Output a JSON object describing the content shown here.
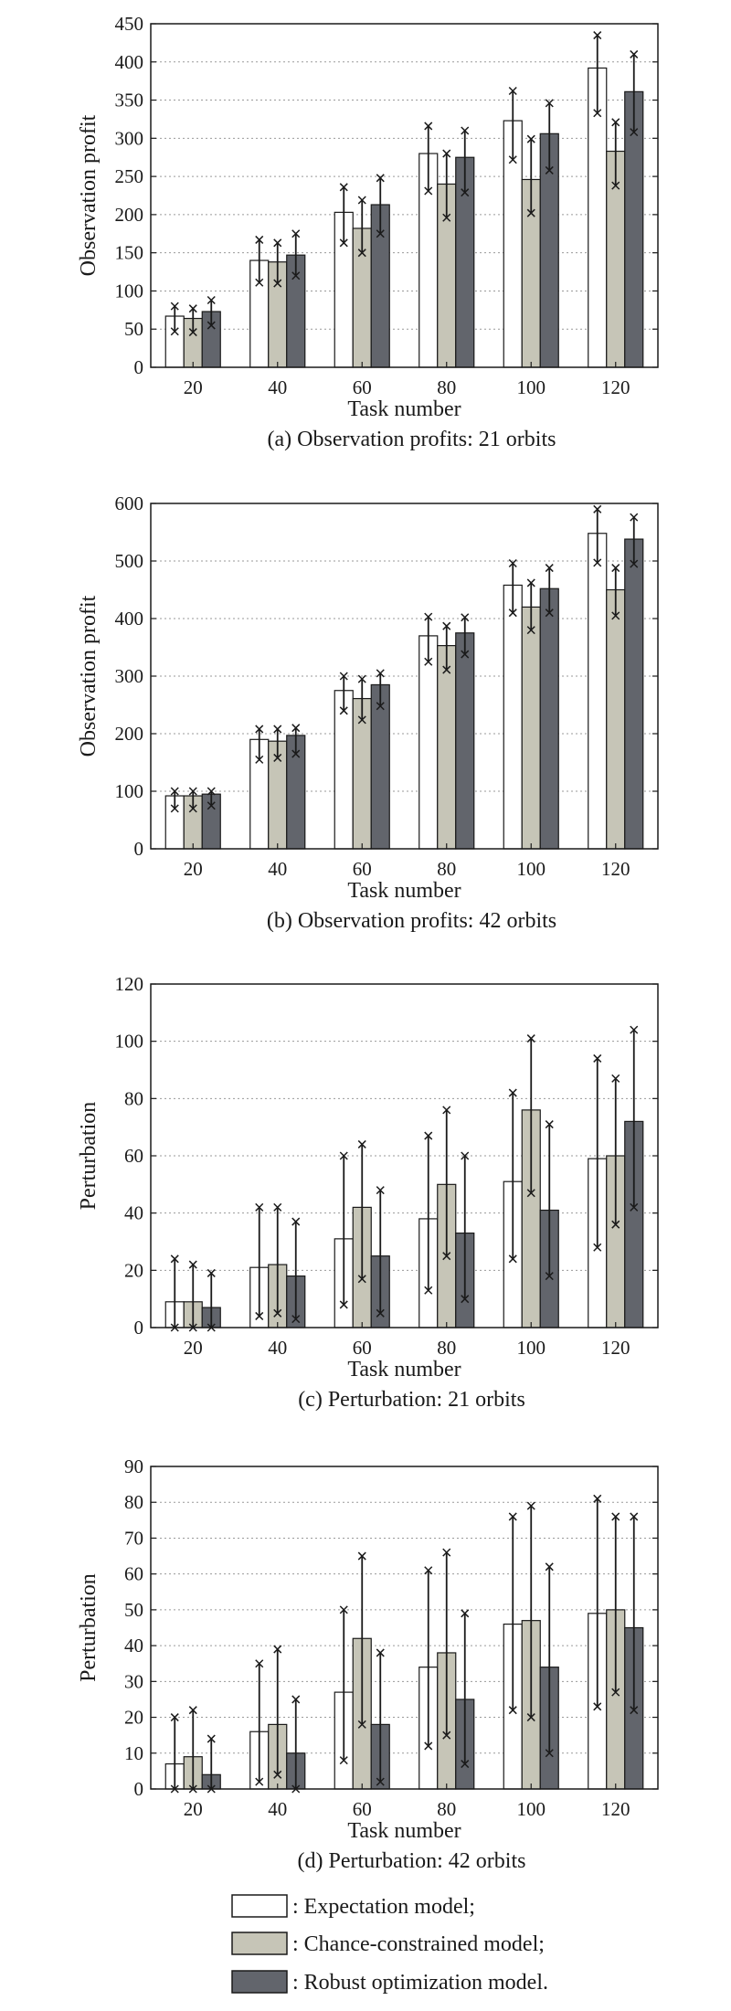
{
  "colors": {
    "expectation": "#ffffff",
    "chance": "#c6c5b7",
    "robust": "#62656c",
    "stroke": "#1a1a1a",
    "grid": "#9a9a9a"
  },
  "legend": [
    {
      "key": "expectation",
      "label": ": Expectation model;"
    },
    {
      "key": "chance",
      "label": ": Chance-constrained model;"
    },
    {
      "key": "robust",
      "label": ": Robust optimization model."
    }
  ],
  "chart_data": [
    {
      "type": "bar",
      "caption": "(a) Observation profits: 21 orbits",
      "xlabel": "Task number",
      "ylabel": "Observation profit",
      "ylim": [
        0,
        450
      ],
      "yticks": [
        0,
        50,
        100,
        150,
        200,
        250,
        300,
        350,
        400,
        450
      ],
      "categories": [
        "20",
        "40",
        "60",
        "80",
        "100",
        "120"
      ],
      "series": [
        {
          "name": "Expectation model",
          "key": "expectation",
          "values": [
            67,
            140,
            203,
            280,
            323,
            392
          ],
          "err_low": [
            47,
            111,
            163,
            231,
            272,
            333
          ],
          "err_high": [
            80,
            167,
            236,
            316,
            362,
            435
          ]
        },
        {
          "name": "Chance-constrained model",
          "key": "chance",
          "values": [
            64,
            138,
            182,
            240,
            246,
            283
          ],
          "err_low": [
            46,
            110,
            150,
            196,
            202,
            238
          ],
          "err_high": [
            77,
            163,
            219,
            280,
            299,
            321
          ]
        },
        {
          "name": "Robust optimization model",
          "key": "robust",
          "values": [
            73,
            147,
            213,
            275,
            306,
            361
          ],
          "err_low": [
            55,
            120,
            175,
            229,
            258,
            308
          ],
          "err_high": [
            88,
            175,
            248,
            310,
            346,
            410
          ]
        }
      ]
    },
    {
      "type": "bar",
      "caption": "(b) Observation profits: 42 orbits",
      "xlabel": "Task number",
      "ylabel": "Observation profit",
      "ylim": [
        0,
        600
      ],
      "yticks": [
        0,
        100,
        200,
        300,
        400,
        500,
        600
      ],
      "categories": [
        "20",
        "40",
        "60",
        "80",
        "100",
        "120"
      ],
      "series": [
        {
          "name": "Expectation model",
          "key": "expectation",
          "values": [
            92,
            190,
            275,
            370,
            458,
            548
          ],
          "err_low": [
            70,
            155,
            240,
            325,
            410,
            497
          ],
          "err_high": [
            100,
            208,
            300,
            403,
            496,
            590
          ]
        },
        {
          "name": "Chance-constrained model",
          "key": "chance",
          "values": [
            92,
            187,
            261,
            353,
            420,
            450
          ],
          "err_low": [
            70,
            158,
            224,
            311,
            380,
            405
          ],
          "err_high": [
            100,
            208,
            295,
            387,
            462,
            488
          ]
        },
        {
          "name": "Robust optimization model",
          "key": "robust",
          "values": [
            95,
            197,
            285,
            375,
            452,
            538
          ],
          "err_low": [
            75,
            165,
            248,
            338,
            410,
            495
          ],
          "err_high": [
            100,
            210,
            305,
            402,
            488,
            576
          ]
        }
      ]
    },
    {
      "type": "bar",
      "caption": "(c) Perturbation: 21 orbits",
      "xlabel": "Task number",
      "ylabel": "Perturbation",
      "ylim": [
        0,
        120
      ],
      "yticks": [
        0,
        20,
        40,
        60,
        80,
        100,
        120
      ],
      "categories": [
        "20",
        "40",
        "60",
        "80",
        "100",
        "120"
      ],
      "series": [
        {
          "name": "Expectation model",
          "key": "expectation",
          "values": [
            9,
            21,
            31,
            38,
            51,
            59
          ],
          "err_low": [
            0,
            4,
            8,
            13,
            24,
            28
          ],
          "err_high": [
            24,
            42,
            60,
            67,
            82,
            94
          ]
        },
        {
          "name": "Chance-constrained model",
          "key": "chance",
          "values": [
            9,
            22,
            42,
            50,
            76,
            60
          ],
          "err_low": [
            0,
            5,
            17,
            25,
            47,
            36
          ],
          "err_high": [
            22,
            42,
            64,
            76,
            101,
            87
          ]
        },
        {
          "name": "Robust optimization model",
          "key": "robust",
          "values": [
            7,
            18,
            25,
            33,
            41,
            72
          ],
          "err_low": [
            0,
            3,
            5,
            10,
            18,
            42
          ],
          "err_high": [
            19,
            37,
            48,
            60,
            71,
            104
          ]
        }
      ]
    },
    {
      "type": "bar",
      "caption": "(d) Perturbation: 42 orbits",
      "xlabel": "Task number",
      "ylabel": "Perturbation",
      "ylim": [
        0,
        90
      ],
      "yticks": [
        0,
        10,
        20,
        30,
        40,
        50,
        60,
        70,
        80,
        90
      ],
      "categories": [
        "20",
        "40",
        "60",
        "80",
        "100",
        "120"
      ],
      "series": [
        {
          "name": "Expectation model",
          "key": "expectation",
          "values": [
            7,
            16,
            27,
            34,
            46,
            49
          ],
          "err_low": [
            0,
            2,
            8,
            12,
            22,
            23
          ],
          "err_high": [
            20,
            35,
            50,
            61,
            76,
            81
          ]
        },
        {
          "name": "Chance-constrained model",
          "key": "chance",
          "values": [
            9,
            18,
            42,
            38,
            47,
            50
          ],
          "err_low": [
            0,
            4,
            18,
            15,
            20,
            27
          ],
          "err_high": [
            22,
            39,
            65,
            66,
            79,
            76
          ]
        },
        {
          "name": "Robust optimization model",
          "key": "robust",
          "values": [
            4,
            10,
            18,
            25,
            34,
            45
          ],
          "err_low": [
            0,
            0,
            2,
            7,
            10,
            22
          ],
          "err_high": [
            14,
            25,
            38,
            49,
            62,
            76
          ]
        }
      ]
    }
  ]
}
